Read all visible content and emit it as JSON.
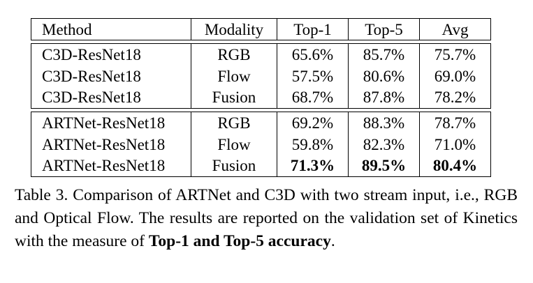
{
  "table": {
    "headers": [
      "Method",
      "Modality",
      "Top-1",
      "Top-5",
      "Avg"
    ],
    "groups": [
      {
        "rows": [
          {
            "method": "C3D-ResNet18",
            "modality": "RGB",
            "top1": "65.6%",
            "top5": "85.7%",
            "avg": "75.7%"
          },
          {
            "method": "C3D-ResNet18",
            "modality": "Flow",
            "top1": "57.5%",
            "top5": "80.6%",
            "avg": "69.0%"
          },
          {
            "method": "C3D-ResNet18",
            "modality": "Fusion",
            "top1": "68.7%",
            "top5": "87.8%",
            "avg": "78.2%"
          }
        ]
      },
      {
        "rows": [
          {
            "method": "ARTNet-ResNet18",
            "modality": "RGB",
            "top1": "69.2%",
            "top5": "88.3%",
            "avg": "78.7%"
          },
          {
            "method": "ARTNet-ResNet18",
            "modality": "Flow",
            "top1": "59.8%",
            "top5": "82.3%",
            "avg": "71.0%"
          },
          {
            "method": "ARTNet-ResNet18",
            "modality": "Fusion",
            "top1": "71.3%",
            "top5": "89.5%",
            "avg": "80.4%"
          }
        ]
      }
    ]
  },
  "caption": {
    "text_before": "Table 3. Comparison of ARTNet and C3D with two stream input, i.e., RGB and Optical Flow.  The results are reported on the validation set of Kinetics with the measure of ",
    "bold": "Top-1 and Top-5 accuracy",
    "text_after": "."
  }
}
